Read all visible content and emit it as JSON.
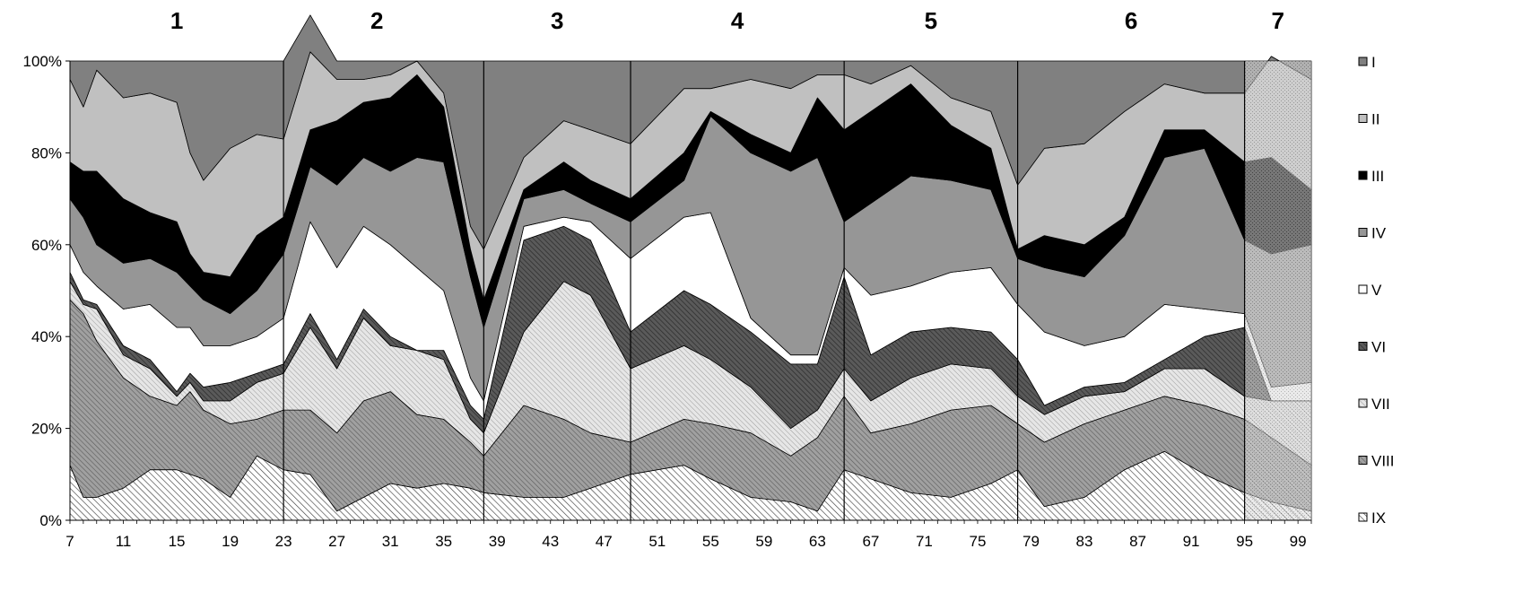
{
  "chart_data": {
    "type": "area",
    "stacked": "percent",
    "title": "",
    "xlabel": "",
    "ylabel": "",
    "ylim": [
      0,
      100
    ],
    "y_ticks": [
      "0%",
      "20%",
      "40%",
      "60%",
      "80%",
      "100%"
    ],
    "x_range": [
      7,
      100
    ],
    "x_tick_labels": [
      "7",
      "11",
      "15",
      "19",
      "23",
      "27",
      "31",
      "35",
      "39",
      "43",
      "47",
      "51",
      "55",
      "59",
      "63",
      "67",
      "71",
      "75",
      "79",
      "83",
      "87",
      "91",
      "95",
      "99"
    ],
    "grid": false,
    "legend_position": "right",
    "period_labels": [
      "1",
      "2",
      "3",
      "4",
      "5",
      "6",
      "7"
    ],
    "period_boundaries": [
      23,
      38,
      49,
      65,
      78,
      95
    ],
    "period_label_x": [
      15,
      30,
      43.5,
      57,
      71.5,
      86.5,
      97.5
    ],
    "legend": [
      "I",
      "II",
      "III",
      "IV",
      "V",
      "VI",
      "VII",
      "VIII",
      "IX"
    ],
    "colors": {
      "I": "#808080",
      "II": "#c0c0c0",
      "III": "#000000",
      "IV": "#969696",
      "V": "#ffffff",
      "VI": "#6e6e6e",
      "VII": "#d4d4d4",
      "VIII": "#8c8c8c",
      "IX": "#ffffff"
    },
    "x": [
      7,
      8,
      9,
      11,
      13,
      15,
      16,
      17,
      19,
      21,
      23,
      25,
      27,
      29,
      31,
      33,
      35,
      37,
      38,
      41,
      44,
      46,
      49,
      53,
      55,
      58,
      61,
      63,
      65,
      67,
      70,
      73,
      76,
      78,
      80,
      83,
      86,
      89,
      92,
      95,
      97,
      100
    ],
    "series": [
      {
        "name": "IX",
        "values": [
          12,
          5,
          5,
          7,
          11,
          11,
          10,
          9,
          5,
          14,
          11,
          10,
          2,
          5,
          8,
          7,
          8,
          7,
          6,
          5,
          5,
          7,
          10,
          12,
          9,
          5,
          4,
          2,
          11,
          9,
          6,
          5,
          8,
          11,
          3,
          5,
          11,
          15,
          10,
          6,
          4,
          2
        ]
      },
      {
        "name": "VIII",
        "values": [
          36,
          40,
          34,
          24,
          16,
          14,
          18,
          15,
          16,
          8,
          13,
          14,
          17,
          21,
          20,
          16,
          14,
          10,
          8,
          20,
          17,
          12,
          7,
          10,
          12,
          14,
          10,
          16,
          16,
          10,
          15,
          19,
          17,
          10,
          14,
          16,
          13,
          12,
          15,
          16,
          14,
          10
        ]
      },
      {
        "name": "VII",
        "values": [
          4,
          2,
          7,
          5,
          6,
          2,
          2,
          2,
          5,
          8,
          8,
          18,
          14,
          18,
          10,
          14,
          13,
          5,
          5,
          16,
          30,
          30,
          16,
          16,
          14,
          10,
          6,
          6,
          6,
          7,
          10,
          10,
          8,
          6,
          6,
          6,
          4,
          6,
          8,
          5,
          8,
          14
        ]
      },
      {
        "name": "VI",
        "values": [
          2,
          1,
          1,
          2,
          2,
          1,
          2,
          3,
          4,
          2,
          2,
          3,
          2,
          2,
          2,
          0,
          2,
          3,
          3,
          20,
          12,
          12,
          8,
          12,
          12,
          12,
          14,
          10,
          20,
          10,
          10,
          8,
          8,
          8,
          2,
          2,
          2,
          2,
          7,
          15,
          0,
          0
        ]
      },
      {
        "name": "V",
        "values": [
          6,
          6,
          4,
          8,
          12,
          14,
          10,
          9,
          8,
          8,
          10,
          20,
          20,
          18,
          20,
          18,
          13,
          6,
          4,
          3,
          2,
          4,
          16,
          16,
          20,
          3,
          2,
          2,
          2,
          13,
          10,
          12,
          14,
          12,
          16,
          9,
          10,
          12,
          6,
          3,
          3,
          4
        ]
      },
      {
        "name": "IV",
        "values": [
          10,
          12,
          9,
          10,
          10,
          12,
          9,
          10,
          7,
          10,
          14,
          12,
          18,
          15,
          16,
          24,
          28,
          22,
          16,
          6,
          6,
          4,
          8,
          8,
          21,
          36,
          40,
          43,
          10,
          20,
          24,
          20,
          17,
          10,
          14,
          15,
          22,
          32,
          35,
          16,
          29,
          30
        ]
      },
      {
        "name": "III",
        "values": [
          8,
          10,
          16,
          14,
          10,
          11,
          7,
          6,
          8,
          12,
          8,
          8,
          14,
          12,
          16,
          18,
          12,
          6,
          6,
          2,
          6,
          5,
          5,
          6,
          1,
          4,
          4,
          13,
          20,
          20,
          20,
          12,
          9,
          2,
          7,
          7,
          4,
          6,
          4,
          17,
          21,
          12
        ]
      },
      {
        "name": "II",
        "values": [
          18,
          14,
          22,
          22,
          26,
          26,
          22,
          20,
          28,
          22,
          17,
          17,
          9,
          5,
          5,
          3,
          3,
          5,
          11,
          7,
          9,
          11,
          12,
          14,
          5,
          12,
          14,
          5,
          12,
          6,
          4,
          6,
          8,
          14,
          19,
          22,
          23,
          10,
          8,
          15,
          22,
          24
        ]
      },
      {
        "name": "I",
        "values": [
          4,
          10,
          2,
          8,
          7,
          9,
          20,
          26,
          19,
          16,
          17,
          8,
          4,
          4,
          3,
          0,
          7,
          36,
          41,
          21,
          13,
          15,
          18,
          6,
          6,
          4,
          6,
          3,
          3,
          5,
          1,
          8,
          11,
          27,
          19,
          18,
          11,
          5,
          7,
          7,
          -1,
          4
        ]
      }
    ]
  }
}
